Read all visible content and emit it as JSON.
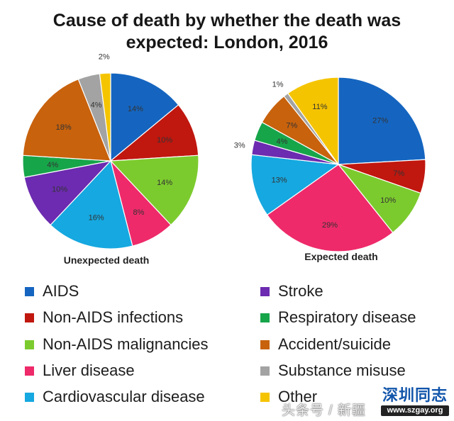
{
  "title_lines": [
    "Cause of death by whether the death was",
    "expected: London, 2016"
  ],
  "chart_data": [
    {
      "type": "pie",
      "title": "Unexpected death",
      "categories": [
        "AIDS",
        "Non-AIDS infections",
        "Non-AIDS malignancies",
        "Liver disease",
        "Cardiovascular disease",
        "Stroke",
        "Respiratory disease",
        "Accident/suicide",
        "Substance misuse",
        "Other"
      ],
      "values": [
        14,
        10,
        14,
        8,
        16,
        10,
        4,
        18,
        4,
        2
      ],
      "labels": [
        "14%",
        "10%",
        "14%",
        "8%",
        "16%",
        "10%",
        "4%",
        "18%",
        "4%",
        "2%"
      ]
    },
    {
      "type": "pie",
      "title": "Expected death",
      "categories": [
        "AIDS",
        "Non-AIDS infections",
        "Non-AIDS malignancies",
        "Liver disease",
        "Cardiovascular disease",
        "Stroke",
        "Respiratory disease",
        "Accident/suicide",
        "Substance misuse",
        "Other"
      ],
      "values": [
        27,
        7,
        10,
        29,
        13,
        3,
        4,
        7,
        1,
        11
      ],
      "labels": [
        "27%",
        "7%",
        "10%",
        "29%",
        "13%",
        "3%",
        "4%",
        "7%",
        "1%",
        "11%"
      ]
    }
  ],
  "legend": [
    {
      "label": "AIDS",
      "color": "#1565c0"
    },
    {
      "label": "Non-AIDS infections",
      "color": "#c0170f"
    },
    {
      "label": "Non-AIDS malignancies",
      "color": "#7ccb2e"
    },
    {
      "label": "Liver disease",
      "color": "#ee2a6a"
    },
    {
      "label": "Cardiovascular disease",
      "color": "#16a8e0"
    },
    {
      "label": "Stroke",
      "color": "#6c2bb0"
    },
    {
      "label": "Respiratory disease",
      "color": "#17a54a"
    },
    {
      "label": "Accident/suicide",
      "color": "#c8620d"
    },
    {
      "label": "Substance misuse",
      "color": "#a3a3a3"
    },
    {
      "label": "Other",
      "color": "#f5c400"
    }
  ],
  "watermark": {
    "text": "头条号 / 新疆",
    "logo_text": "深圳同志",
    "logo_url": "www.szgay.org"
  }
}
